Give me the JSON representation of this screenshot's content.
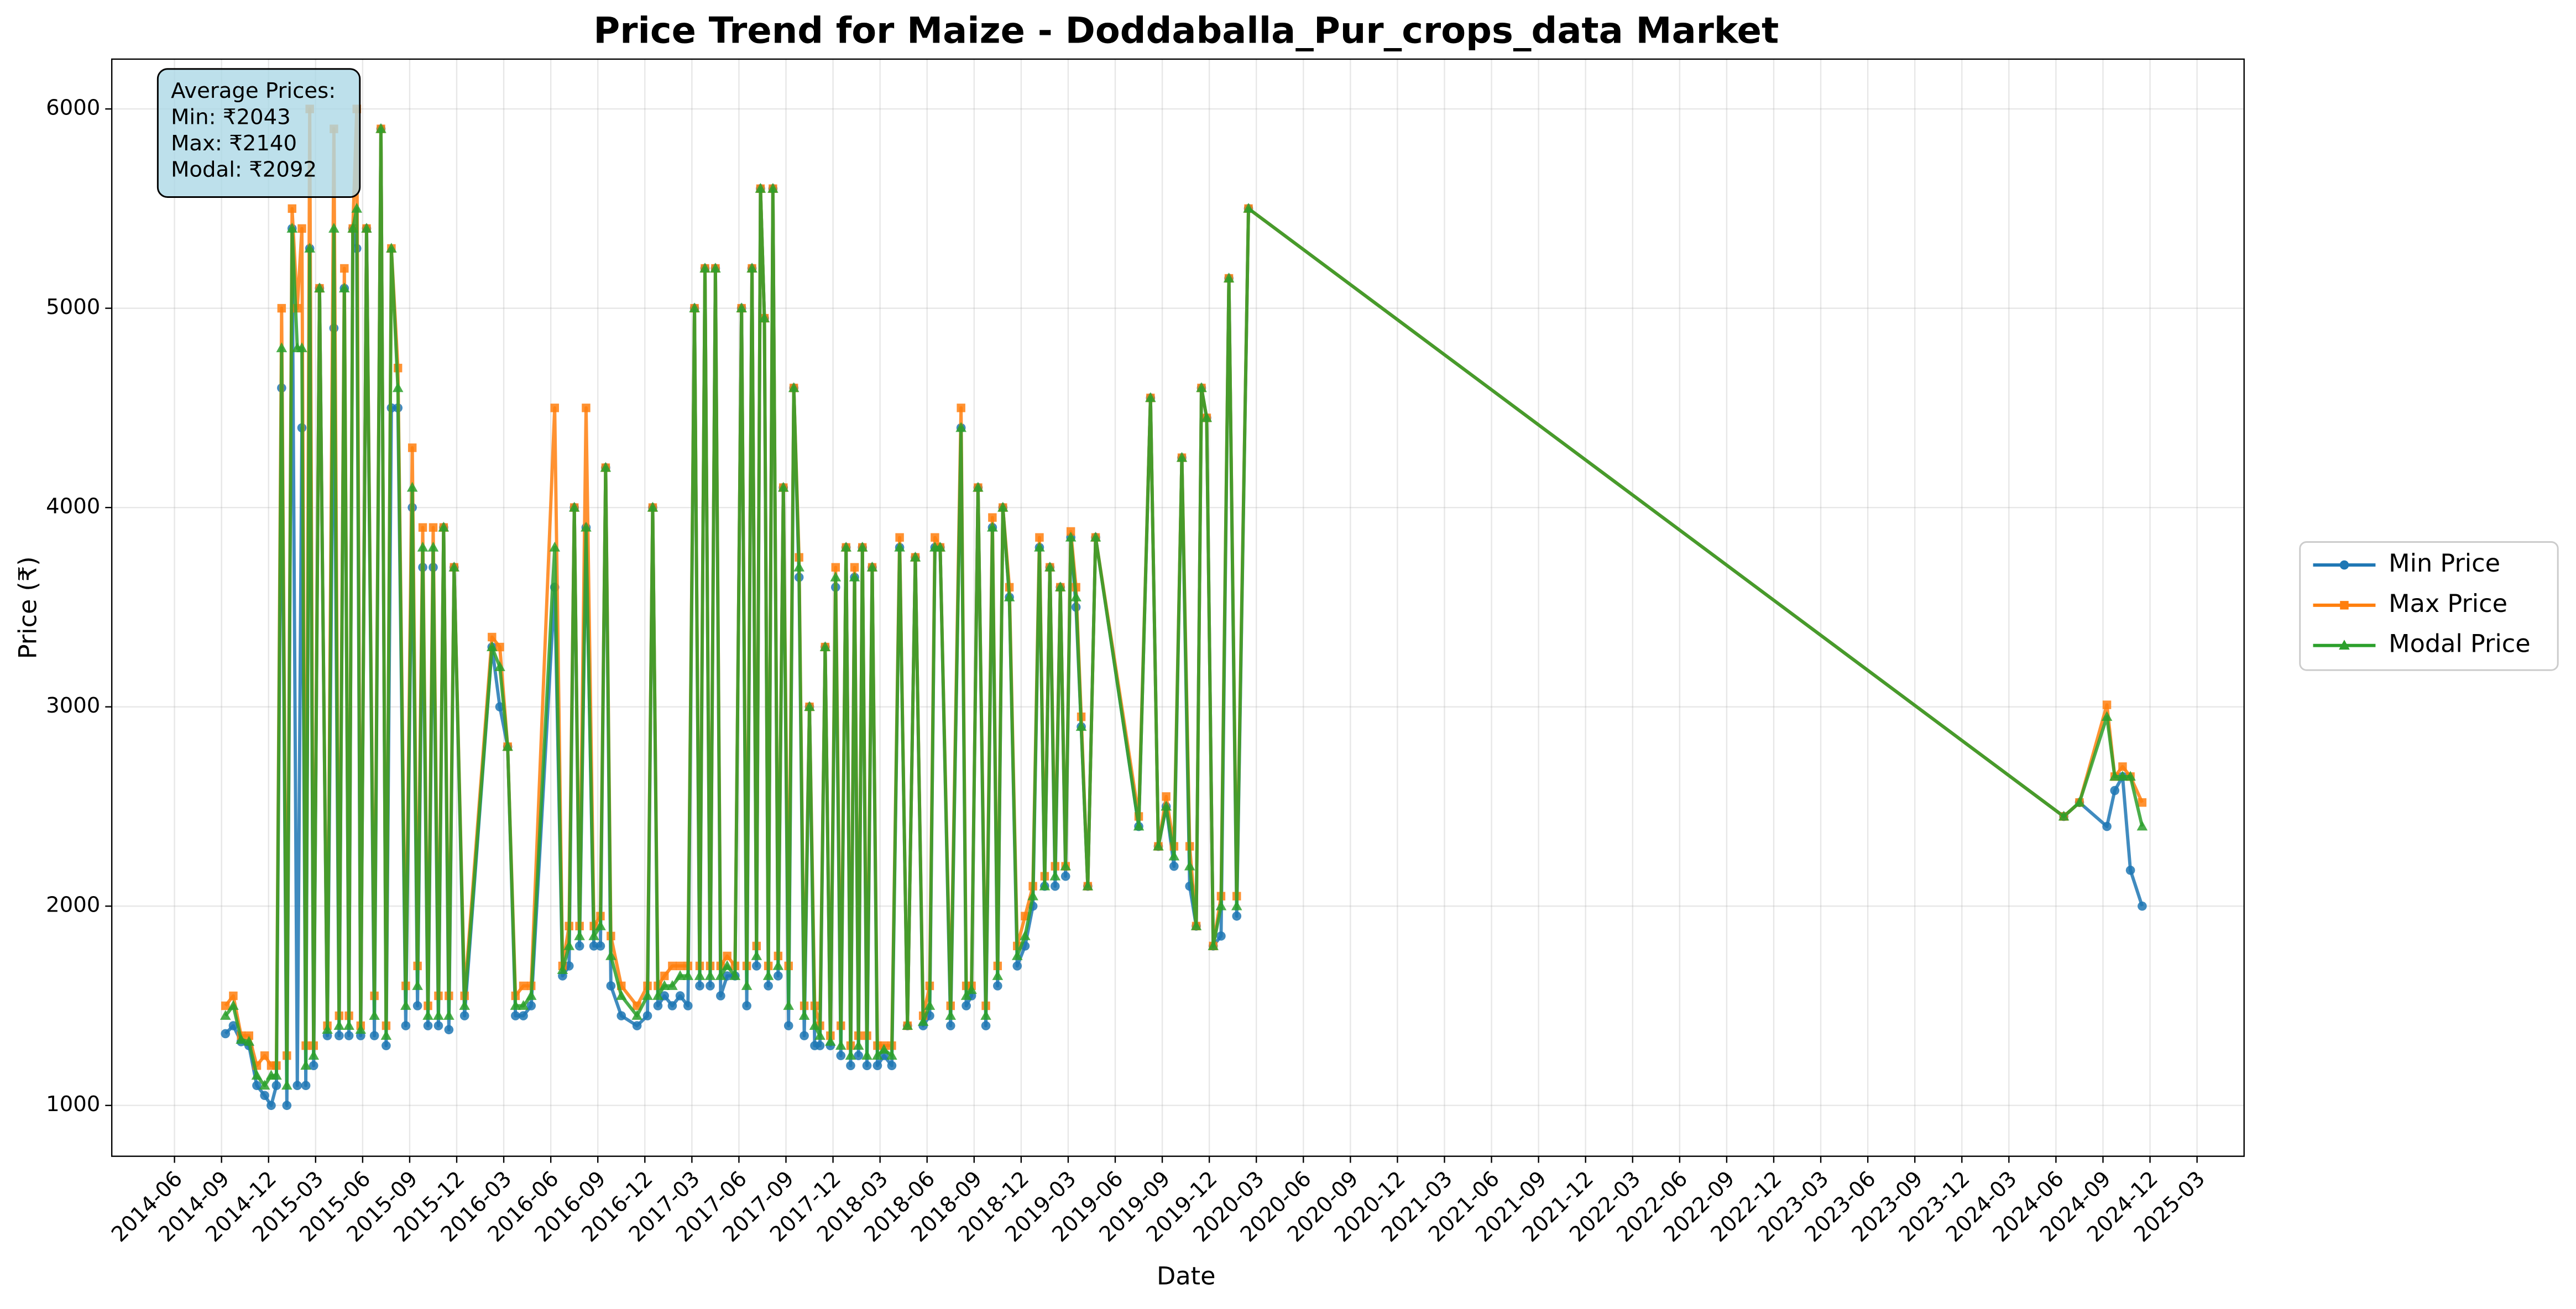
{
  "chart_data": {
    "type": "line",
    "title": "Price Trend for Maize - Doddaballa_Pur_crops_data Market",
    "xlabel": "Date",
    "ylabel": "Price (₹)",
    "annotation": [
      "Average Prices:",
      "Min: ₹2043",
      "Max: ₹2140",
      "Modal: ₹2092"
    ],
    "legend": "right",
    "grid": true,
    "xlim": [
      "2014-02",
      "2025-06"
    ],
    "ylim": [
      745,
      6250
    ],
    "yticks": [
      1000,
      2000,
      3000,
      4000,
      5000,
      6000
    ],
    "xticks": [
      "2014-06",
      "2014-09",
      "2014-12",
      "2015-03",
      "2015-06",
      "2015-09",
      "2015-12",
      "2016-03",
      "2016-06",
      "2016-09",
      "2016-12",
      "2017-03",
      "2017-06",
      "2017-09",
      "2017-12",
      "2018-03",
      "2018-06",
      "2018-09",
      "2018-12",
      "2019-03",
      "2019-06",
      "2019-09",
      "2019-12",
      "2020-03",
      "2020-06",
      "2020-09",
      "2020-12",
      "2021-03",
      "2021-06",
      "2021-09",
      "2021-12",
      "2022-03",
      "2022-06",
      "2022-09",
      "2022-12",
      "2023-03",
      "2023-06",
      "2023-09",
      "2023-12",
      "2024-03",
      "2024-06",
      "2024-09",
      "2024-12",
      "2025-03"
    ],
    "x": [
      "2014-09",
      "2014-09",
      "2014-10",
      "2014-10",
      "2014-11",
      "2014-11",
      "2014-12",
      "2014-12",
      "2014-12",
      "2015-01",
      "2015-01",
      "2015-01",
      "2015-02",
      "2015-02",
      "2015-02",
      "2015-02",
      "2015-03",
      "2015-03",
      "2015-04",
      "2015-04",
      "2015-04",
      "2015-05",
      "2015-05",
      "2015-05",
      "2015-05",
      "2015-06",
      "2015-06",
      "2015-07",
      "2015-07",
      "2015-07",
      "2015-08",
      "2015-08",
      "2015-09",
      "2015-09",
      "2015-09",
      "2015-10",
      "2015-10",
      "2015-10",
      "2015-11",
      "2015-11",
      "2015-11",
      "2015-12",
      "2016-02",
      "2016-02",
      "2016-03",
      "2016-03",
      "2016-04",
      "2016-04",
      "2016-06",
      "2016-06",
      "2016-07",
      "2016-07",
      "2016-07",
      "2016-08",
      "2016-08",
      "2016-09",
      "2016-09",
      "2016-09",
      "2016-10",
      "2016-11",
      "2016-12",
      "2016-12",
      "2016-12",
      "2017-01",
      "2017-01",
      "2017-02",
      "2017-02",
      "2017-03",
      "2017-03",
      "2017-03",
      "2017-04",
      "2017-04",
      "2017-04",
      "2017-05",
      "2017-05",
      "2017-06",
      "2017-06",
      "2017-06",
      "2017-07",
      "2017-07",
      "2017-07",
      "2017-07",
      "2017-08",
      "2017-08",
      "2017-08",
      "2017-09",
      "2017-09",
      "2017-09",
      "2017-10",
      "2017-10",
      "2017-10",
      "2017-11",
      "2017-11",
      "2017-11",
      "2017-12",
      "2017-12",
      "2017-12",
      "2018-01",
      "2018-01",
      "2018-01",
      "2018-01",
      "2018-02",
      "2018-02",
      "2018-02",
      "2018-03",
      "2018-03",
      "2018-04",
      "2018-04",
      "2018-05",
      "2018-05",
      "2018-06",
      "2018-06",
      "2018-06",
      "2018-07",
      "2018-08",
      "2018-08",
      "2018-08",
      "2018-09",
      "2018-09",
      "2018-10",
      "2018-10",
      "2018-10",
      "2018-11",
      "2018-11",
      "2018-12",
      "2018-12",
      "2019-01",
      "2019-01",
      "2019-01",
      "2019-02",
      "2019-02",
      "2019-02",
      "2019-03",
      "2019-03",
      "2019-03",
      "2019-04",
      "2019-04",
      "2019-07",
      "2019-08",
      "2019-08",
      "2019-09",
      "2019-09",
      "2019-10",
      "2019-10",
      "2019-11",
      "2019-11",
      "2019-11",
      "2019-12",
      "2019-12",
      "2020-01",
      "2020-01",
      "2020-02",
      "2024-06",
      "2024-07",
      "2024-09",
      "2024-09",
      "2024-10",
      "2024-10",
      "2024-11"
    ],
    "series": [
      {
        "name": "Min Price",
        "color": "#1f77b4",
        "marker": "circle",
        "values": [
          1360,
          1400,
          1320,
          1300,
          1100,
          1050,
          1000,
          1100,
          4600,
          1000,
          5400,
          1100,
          4400,
          1100,
          5300,
          1200,
          5100,
          1350,
          4900,
          1350,
          5100,
          1350,
          5400,
          5300,
          1350,
          5400,
          1350,
          5900,
          1300,
          4500,
          4500,
          1400,
          4000,
          1500,
          3700,
          1400,
          3700,
          1400,
          3900,
          1380,
          3700,
          1450,
          3300,
          3000,
          2800,
          1450,
          1450,
          1500,
          3600,
          1650,
          1700,
          4000,
          1800,
          3900,
          1800,
          1800,
          4200,
          1600,
          1450,
          1400,
          1450,
          4000,
          1500,
          1550,
          1500,
          1550,
          1500,
          5000,
          1600,
          5200,
          1600,
          5200,
          1550,
          1650,
          1650,
          5000,
          1500,
          5200,
          1700,
          5600,
          4950,
          1600,
          5600,
          1650,
          4100,
          1400,
          4600,
          3650,
          1350,
          3000,
          1300,
          1300,
          3300,
          1300,
          3600,
          1250,
          3800,
          1200,
          3650,
          1250,
          3800,
          1200,
          3700,
          1200,
          1250,
          1200,
          3800,
          1400,
          3750,
          1400,
          1450,
          3800,
          3800,
          1400,
          4400,
          1500,
          1550,
          4100,
          1400,
          3900,
          1600,
          4000,
          3550,
          1700,
          1800,
          2000,
          3800,
          2100,
          3700,
          2100,
          3600,
          2150,
          3850,
          3500,
          2900,
          2100,
          3850,
          2400,
          4550,
          2300,
          2500,
          2200,
          4250,
          2100,
          1900,
          4600,
          4450,
          1800,
          1850,
          5150,
          1950,
          5500,
          2450,
          2520,
          2400,
          2580,
          2650,
          2180,
          2000
        ]
      },
      {
        "name": "Max Price",
        "color": "#ff7f0e",
        "marker": "square",
        "values": [
          1500,
          1550,
          1350,
          1350,
          1200,
          1250,
          1200,
          1200,
          5000,
          1250,
          5500,
          5000,
          5400,
          1300,
          6000,
          1300,
          5100,
          1400,
          5900,
          1450,
          5200,
          1450,
          5400,
          6000,
          1400,
          5400,
          1550,
          5900,
          1400,
          5300,
          4700,
          1600,
          4300,
          1700,
          3900,
          1500,
          3900,
          1550,
          3900,
          1550,
          3700,
          1550,
          3350,
          3300,
          2800,
          1550,
          1600,
          1600,
          4500,
          1700,
          1900,
          4000,
          1900,
          4500,
          1900,
          1950,
          4200,
          1850,
          1600,
          1500,
          1600,
          4000,
          1600,
          1650,
          1700,
          1700,
          1700,
          5000,
          1700,
          5200,
          1700,
          5200,
          1700,
          1750,
          1700,
          5000,
          1700,
          5200,
          1800,
          5600,
          4950,
          1700,
          5600,
          1750,
          4100,
          1700,
          4600,
          3750,
          1500,
          3000,
          1500,
          1400,
          3300,
          1350,
          3700,
          1400,
          3800,
          1300,
          3700,
          1350,
          3800,
          1350,
          3700,
          1300,
          1300,
          1300,
          3850,
          1400,
          3750,
          1450,
          1600,
          3850,
          3800,
          1500,
          4500,
          1600,
          1600,
          4100,
          1500,
          3950,
          1700,
          4000,
          3600,
          1800,
          1950,
          2100,
          3850,
          2150,
          3700,
          2200,
          3600,
          2200,
          3880,
          3600,
          2950,
          2100,
          3850,
          2450,
          4550,
          2300,
          2550,
          2300,
          4250,
          2300,
          1900,
          4600,
          4450,
          1800,
          2050,
          5150,
          2050,
          5500,
          2450,
          2520,
          3010,
          2650,
          2700,
          2650,
          2520
        ]
      },
      {
        "name": "Modal Price",
        "color": "#2ca02c",
        "marker": "triangle",
        "values": [
          1450,
          1500,
          1330,
          1320,
          1150,
          1100,
          1150,
          1150,
          4800,
          1100,
          5400,
          4800,
          4800,
          1200,
          5300,
          1250,
          5100,
          1380,
          5400,
          1400,
          5100,
          1400,
          5400,
          5500,
          1380,
          5400,
          1450,
          5900,
          1350,
          5300,
          4600,
          1500,
          4100,
          1600,
          3800,
          1450,
          3800,
          1450,
          3900,
          1450,
          3700,
          1500,
          3300,
          3200,
          2800,
          1500,
          1500,
          1550,
          3800,
          1680,
          1800,
          4000,
          1850,
          3900,
          1850,
          1900,
          4200,
          1750,
          1550,
          1450,
          1550,
          4000,
          1550,
          1600,
          1600,
          1650,
          1650,
          5000,
          1650,
          5200,
          1650,
          5200,
          1650,
          1700,
          1650,
          5000,
          1600,
          5200,
          1750,
          5600,
          4950,
          1650,
          5600,
          1700,
          4100,
          1500,
          4600,
          3700,
          1450,
          3000,
          1400,
          1350,
          3300,
          1320,
          3650,
          1300,
          3800,
          1250,
          3650,
          1300,
          3800,
          1250,
          3700,
          1250,
          1280,
          1250,
          3800,
          1400,
          3750,
          1420,
          1500,
          3800,
          3800,
          1450,
          4400,
          1550,
          1580,
          4100,
          1450,
          3900,
          1650,
          4000,
          3550,
          1750,
          1850,
          2050,
          3800,
          2100,
          3700,
          2150,
          3600,
          2200,
          3850,
          3550,
          2900,
          2100,
          3850,
          2400,
          4550,
          2300,
          2500,
          2250,
          4250,
          2200,
          1900,
          4600,
          4450,
          1800,
          2000,
          5150,
          2000,
          5500,
          2450,
          2520,
          2950,
          2650,
          2650,
          2650,
          2400
        ]
      }
    ]
  }
}
